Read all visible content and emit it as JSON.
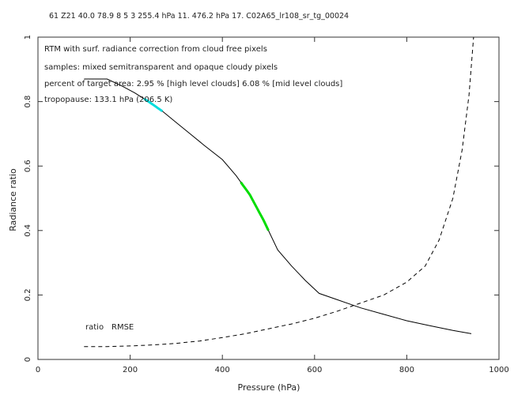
{
  "header": "61  Z21  40.0  78.9 8 5  3  255.4 hPa  11.  476.2 hPa  17. C02A65_lr108_sr_tg_00024",
  "annotations": [
    "RTM with surf. radiance correction from cloud free pixels",
    "samples: mixed semitransparent and opaque cloudy pixels",
    "percent of target area:  2.95 % [high level clouds]   6.08 % [mid  level clouds]",
    "tropopause: 133.1 hPa (206.5 K)"
  ],
  "chart_data": {
    "type": "line",
    "title": "",
    "xlabel": "Pressure (hPa)",
    "ylabel": "Radiance ratio",
    "xlim": [
      0,
      1000
    ],
    "ylim": [
      0,
      1
    ],
    "xticks": [
      0,
      200,
      400,
      600,
      800,
      1000
    ],
    "xtick_labels": [
      "0",
      "200",
      "400",
      "600",
      "800",
      "1000"
    ],
    "yticks": [
      0,
      0.2,
      0.4,
      0.6,
      0.8,
      1
    ],
    "ytick_labels": [
      "0",
      "0.2",
      "0.4",
      "0.6",
      "0.8",
      "1"
    ],
    "grid": false,
    "series": [
      {
        "name": "ratio",
        "style": "solid",
        "color": "#000000",
        "x": [
          100,
          150,
          180,
          210,
          240,
          270,
          300,
          330,
          360,
          400,
          430,
          460,
          490,
          520,
          550,
          580,
          610,
          650,
          700,
          750,
          800,
          850,
          900,
          940
        ],
        "y": [
          0.87,
          0.87,
          0.85,
          0.827,
          0.8,
          0.77,
          0.735,
          0.7,
          0.665,
          0.62,
          0.57,
          0.51,
          0.43,
          0.34,
          0.29,
          0.245,
          0.205,
          0.185,
          0.16,
          0.14,
          0.12,
          0.105,
          0.09,
          0.08
        ]
      },
      {
        "name": "RMSE",
        "style": "dashed",
        "color": "#000000",
        "x": [
          100,
          150,
          200,
          250,
          300,
          350,
          400,
          450,
          500,
          550,
          600,
          650,
          700,
          750,
          800,
          840,
          870,
          900,
          920,
          935,
          945
        ],
        "y": [
          0.04,
          0.04,
          0.042,
          0.045,
          0.05,
          0.057,
          0.068,
          0.08,
          0.095,
          0.11,
          0.128,
          0.15,
          0.175,
          0.2,
          0.24,
          0.29,
          0.37,
          0.5,
          0.65,
          0.82,
          1.0
        ]
      }
    ],
    "highlights": [
      {
        "color": "#00dddd",
        "x": [
          230,
          270
        ]
      },
      {
        "color": "#00dd00",
        "x": [
          440,
          500
        ]
      }
    ],
    "legend_labels": [
      "ratio",
      "RMSE"
    ]
  }
}
